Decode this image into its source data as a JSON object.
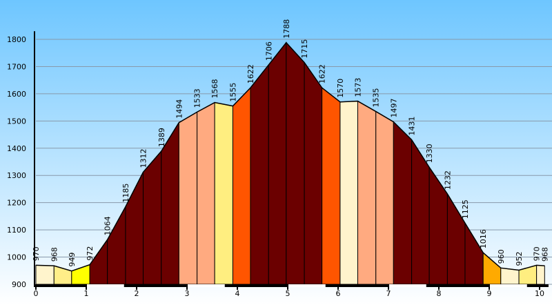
{
  "chart_data": {
    "type": "area",
    "x": [
      0,
      0.36,
      0.71,
      1.07,
      1.42,
      1.78,
      2.13,
      2.49,
      2.84,
      3.2,
      3.55,
      3.91,
      4.26,
      4.62,
      4.97,
      5.33,
      5.68,
      6.04,
      6.39,
      6.75,
      7.1,
      7.46,
      7.81,
      8.17,
      8.52,
      8.88,
      9.23,
      9.59,
      9.94,
      10.1
    ],
    "values": [
      970,
      968,
      949,
      972,
      1064,
      1185,
      1312,
      1389,
      1494,
      1533,
      1568,
      1555,
      1622,
      1706,
      1788,
      1715,
      1622,
      1570,
      1573,
      1535,
      1497,
      1431,
      1330,
      1232,
      1125,
      1016,
      960,
      952,
      970,
      968
    ],
    "segment_colors": [
      "#fff4cc",
      "#ffee88",
      "#ffff00",
      "#6b0000",
      "#6b0000",
      "#6b0000",
      "#6b0000",
      "#6b0000",
      "#ffaa80",
      "#ffaa80",
      "#ffee80",
      "#ff5500",
      "#6b0000",
      "#6b0000",
      "#6b0000",
      "#6b0000",
      "#ff5500",
      "#fff4cc",
      "#ffaa80",
      "#ffaa80",
      "#6b0000",
      "#6b0000",
      "#6b0000",
      "#6b0000",
      "#6b0000",
      "#ffaa00",
      "#fff4cc",
      "#ffee80",
      "#fff4cc"
    ],
    "xlim": [
      0,
      10.15
    ],
    "ylim": [
      900,
      1830
    ],
    "xticks": [
      0,
      1,
      2,
      3,
      4,
      5,
      6,
      7,
      8,
      9,
      10
    ],
    "yticks": [
      900,
      1000,
      1100,
      1200,
      1300,
      1400,
      1500,
      1600,
      1700,
      1800
    ],
    "grid": true
  }
}
